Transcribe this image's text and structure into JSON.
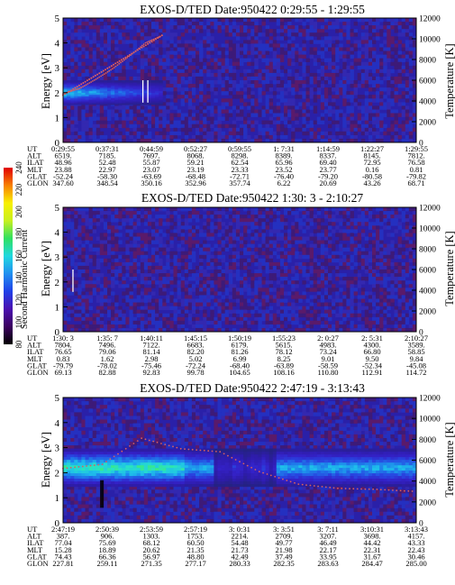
{
  "chart_data": [
    {
      "type": "heatmap",
      "title": "EXOS-D/TED   Date:950422   0:29:55 - 1:29:55",
      "ylabel": "Energy [eV]",
      "y2label": "Temperature [K]",
      "ylim": [
        0,
        5
      ],
      "y_ticks": [
        "0",
        "1",
        "2",
        "3",
        "4",
        "5"
      ],
      "y2lim": [
        0,
        12000
      ],
      "y2_ticks": [
        "0",
        "2000",
        "4000",
        "6000",
        "8000",
        "10000",
        "12000"
      ],
      "features": {
        "band_center_ev": 2.0,
        "band_width_ev": 0.45,
        "band_strength": 0.85,
        "band_end_fraction": 0.28,
        "rise_fraction": [
          0.0,
          0.28
        ],
        "rise_ev": [
          1.9,
          4.3
        ],
        "temperature_trace_k": [
          4700,
          5200,
          6100,
          7100,
          8300,
          9600,
          10300
        ],
        "white_marks_fraction": [
          0.226,
          0.24
        ]
      },
      "table": {
        "labels": [
          "UT",
          "ALT",
          "ILAT",
          "MLT",
          "GLAT",
          "GLON"
        ],
        "rows": [
          [
            "0:29:55",
            "0:37:31",
            "0:44:59",
            "0:52:27",
            "0:59:55",
            "1: 7:31",
            "1:14:59",
            "1:22:27",
            "1:29:55"
          ],
          [
            "6519.",
            "7185.",
            "7697.",
            "8068.",
            "8298.",
            "8389.",
            "8337.",
            "8145.",
            "7812."
          ],
          [
            "48.96",
            "52.48",
            "55.87",
            "59.21",
            "62.54",
            "65.96",
            "69.40",
            "72.95",
            "76.58"
          ],
          [
            "23.88",
            "22.97",
            "23.07",
            "23.19",
            "23.33",
            "23.52",
            "23.77",
            "0.16",
            "0.81"
          ],
          [
            "-52.24",
            "-58.30",
            "-63.69",
            "-68.48",
            "-72.71",
            "-76.40",
            "-79.20",
            "-80.58",
            "-79.82"
          ],
          [
            "347.60",
            "348.54",
            "350.16",
            "352.96",
            "357.74",
            "6.22",
            "20.69",
            "43.26",
            "68.71"
          ]
        ]
      }
    },
    {
      "type": "heatmap",
      "title": "EXOS-D/TED   Date:950422   1:30: 3 - 2:10:27",
      "ylabel": "Energy [eV]",
      "y2label": "Temperature [K]",
      "ylim": [
        0,
        5
      ],
      "y_ticks": [
        "0",
        "1",
        "2",
        "3",
        "4",
        "5"
      ],
      "y2lim": [
        0,
        12000
      ],
      "y2_ticks": [
        "0",
        "2000",
        "4000",
        "6000",
        "8000",
        "10000",
        "12000"
      ],
      "features": {
        "white_marks_fraction": [
          0.028
        ]
      },
      "table": {
        "labels": [
          "UT",
          "ALT",
          "ILAT",
          "MLT",
          "GLAT",
          "GLON"
        ],
        "rows": [
          [
            "1:30: 3",
            "1:35: 7",
            "1:40:11",
            "1:45:15",
            "1:50:19",
            "1:55:23",
            "2: 0:27",
            "2: 5:31",
            "2:10:27"
          ],
          [
            "7804.",
            "7496.",
            "7122.",
            "6683.",
            "6179.",
            "5615.",
            "4983.",
            "4300.",
            "3589."
          ],
          [
            "76.65",
            "79.06",
            "81.14",
            "82.20",
            "81.26",
            "78.12",
            "73.24",
            "66.80",
            "58.85"
          ],
          [
            "0.83",
            "1.62",
            "2.98",
            "5.02",
            "6.99",
            "8.25",
            "9.01",
            "9.50",
            "9.84"
          ],
          [
            "-79.79",
            "-78.02",
            "-75.46",
            "-72.24",
            "-68.40",
            "-63.89",
            "-58.59",
            "-52.34",
            "-45.08"
          ],
          [
            "69.13",
            "82.88",
            "92.83",
            "99.78",
            "104.65",
            "108.16",
            "110.80",
            "112.91",
            "114.72"
          ]
        ]
      }
    },
    {
      "type": "heatmap",
      "title": "EXOS-D/TED   Date:950422   2:47:19 - 3:13:43",
      "ylabel": "Energy [eV]",
      "y2label": "Temperature [K]",
      "ylim": [
        0,
        5
      ],
      "y_ticks": [
        "0",
        "1",
        "2",
        "3",
        "4",
        "5"
      ],
      "y2lim": [
        0,
        12000
      ],
      "y2_ticks": [
        "0",
        "2000",
        "4000",
        "6000",
        "8000",
        "10000",
        "12000"
      ],
      "features": {
        "band_center_ev": 2.2,
        "band_width_ev": 0.7,
        "band_strength": 1.0,
        "band_end_fraction": 1.0,
        "bright_fraction": [
          0.0,
          0.34
        ],
        "dark_fraction": [
          0.42,
          0.6
        ],
        "temperature_trace_k": [
          5200,
          5600,
          8100,
          7100,
          6800,
          4900,
          3700,
          3300,
          3200,
          3000
        ],
        "black_mark_fraction": 0.11
      },
      "table": {
        "labels": [
          "UT",
          "ALT",
          "ILAT",
          "MLT",
          "GLAT",
          "GLON"
        ],
        "rows": [
          [
            "2:47:19",
            "2:50:39",
            "2:53:59",
            "2:57:19",
            "3: 0:31",
            "3: 3:51",
            "3: 7:11",
            "3:10:31",
            "3:13:43"
          ],
          [
            "387.",
            "906.",
            "1303.",
            "1753.",
            "2214.",
            "2709.",
            "3207.",
            "3698.",
            "4157."
          ],
          [
            "77.04",
            "75.69",
            "68.12",
            "60.50",
            "54.48",
            "49.77",
            "46.49",
            "44.42",
            "43.33"
          ],
          [
            "15.28",
            "18.89",
            "20.62",
            "21.35",
            "21.73",
            "21.98",
            "22.17",
            "22.31",
            "22.43"
          ],
          [
            "74.43",
            "66.36",
            "56.97",
            "48.80",
            "42.49",
            "37.49",
            "33.95",
            "31.67",
            "30.46"
          ],
          [
            "227.81",
            "259.11",
            "271.35",
            "277.17",
            "280.33",
            "282.35",
            "283.63",
            "284.47",
            "285.00"
          ]
        ]
      }
    }
  ],
  "colorbar": {
    "label": "Second Harmonic Current",
    "ticks": [
      "80",
      "100",
      "120",
      "140",
      "160",
      "180",
      "200",
      "220",
      "240"
    ],
    "range": [
      80,
      240
    ],
    "colors": [
      "#000000",
      "#3b0060",
      "#4a10b0",
      "#2040e8",
      "#2090f0",
      "#20d8e0",
      "#30e060",
      "#c8f020",
      "#f8f000",
      "#f88000",
      "#e00000"
    ]
  }
}
